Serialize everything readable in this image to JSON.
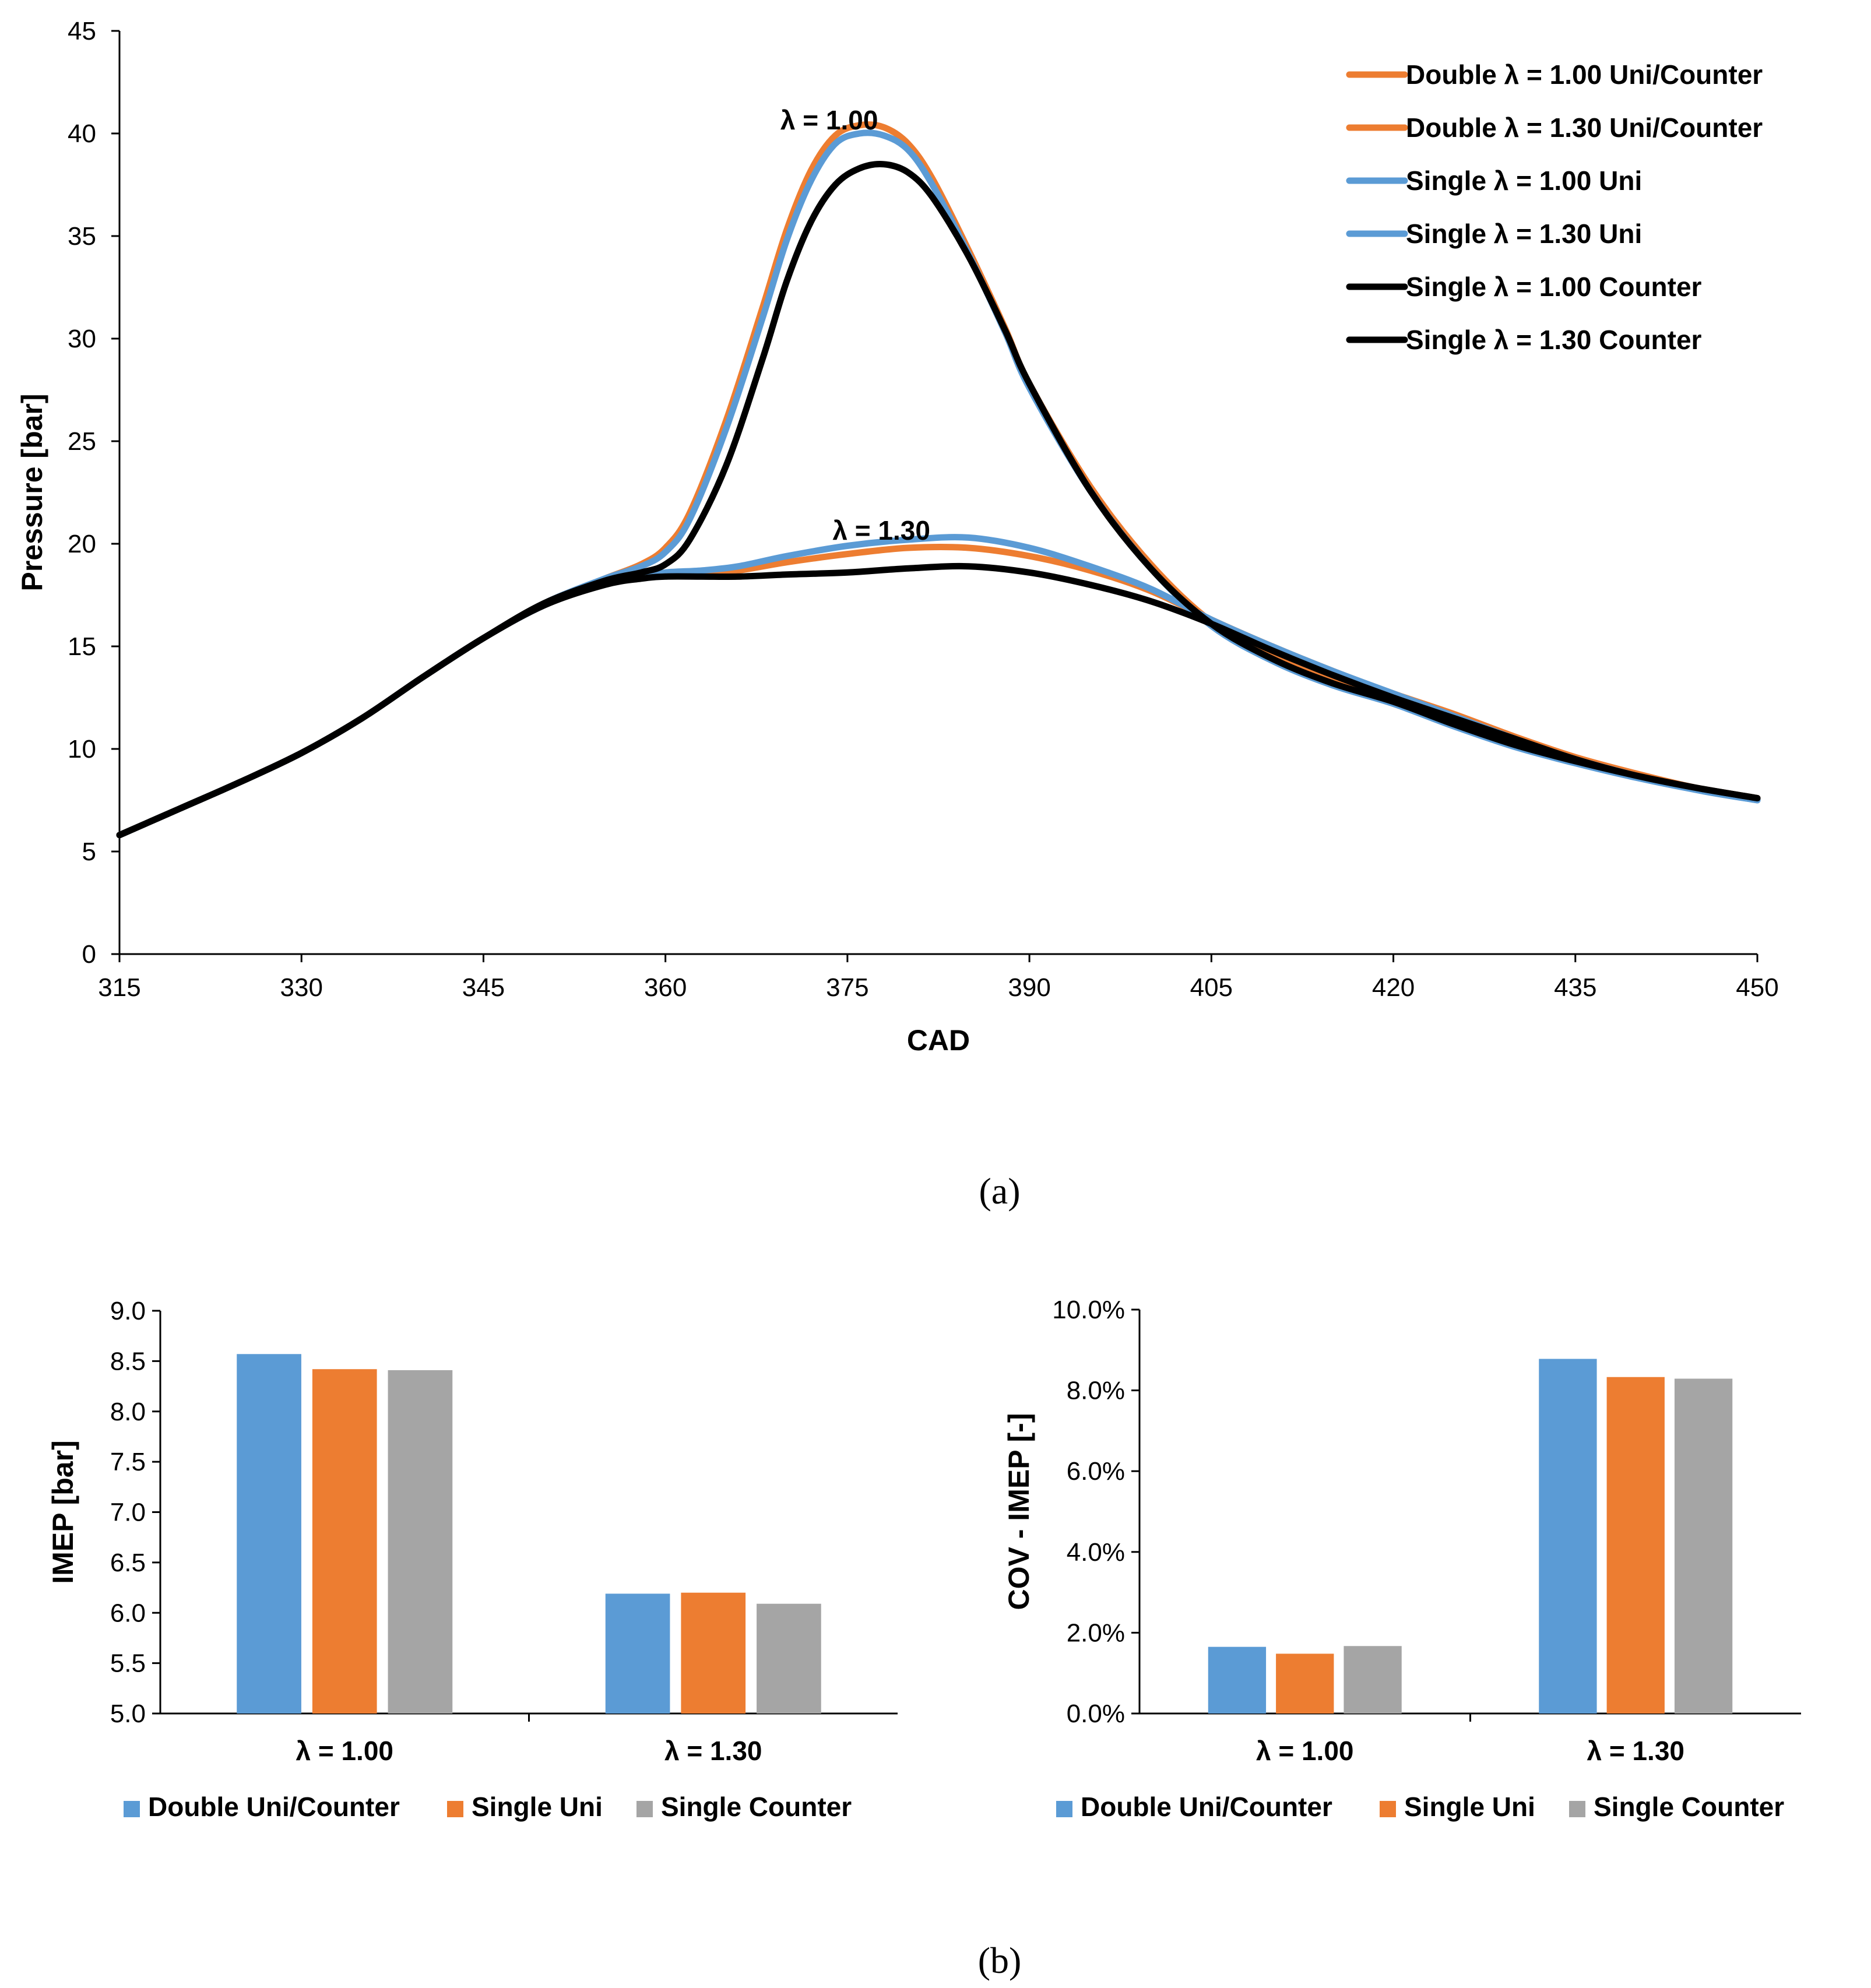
{
  "chart_data": [
    {
      "type": "line",
      "panel": "a",
      "xlabel": "CAD",
      "ylabel": "Pressure [bar]",
      "xlim": [
        315,
        450
      ],
      "ylim": [
        0,
        45
      ],
      "xticks": [
        315,
        330,
        345,
        360,
        375,
        390,
        405,
        420,
        435,
        450
      ],
      "yticks": [
        0,
        5,
        10,
        15,
        20,
        25,
        30,
        35,
        40,
        45
      ],
      "grid": false,
      "legend_position": "top-right",
      "annotations": [
        {
          "text": "λ = 1.00",
          "x": 373.5,
          "y": 40.2
        },
        {
          "text": "λ = 1.30",
          "x": 377.8,
          "y": 20.2
        }
      ],
      "series": [
        {
          "name": "Double λ = 1.00 Uni/Counter",
          "color": "#ED7D31",
          "x": [
            315,
            320,
            325,
            330,
            335,
            340,
            345,
            350,
            355,
            358,
            360,
            362,
            365,
            368,
            370,
            372,
            374,
            376,
            378,
            380,
            382,
            385,
            388,
            390,
            395,
            400,
            405,
            410,
            415,
            420,
            425,
            430,
            435,
            440,
            445,
            450
          ],
          "y": [
            5.8,
            7.1,
            8.4,
            9.8,
            11.5,
            13.5,
            15.4,
            17.1,
            18.3,
            19.0,
            19.8,
            21.5,
            26.0,
            31.5,
            35.3,
            38.2,
            39.9,
            40.4,
            40.3,
            39.5,
            37.8,
            34.3,
            30.5,
            27.8,
            22.8,
            19.0,
            16.2,
            14.5,
            13.3,
            12.4,
            11.3,
            10.3,
            9.5,
            8.7,
            8.1,
            7.6
          ]
        },
        {
          "name": "Double λ = 1.30 Uni/Counter",
          "color": "#ED7D31",
          "x": [
            315,
            320,
            325,
            330,
            335,
            340,
            345,
            350,
            355,
            358,
            360,
            363,
            366,
            370,
            375,
            380,
            385,
            390,
            395,
            400,
            405,
            410,
            415,
            420,
            425,
            430,
            435,
            440,
            445,
            450
          ],
          "y": [
            5.8,
            7.1,
            8.4,
            9.8,
            11.5,
            13.5,
            15.4,
            17.0,
            18.1,
            18.4,
            18.5,
            18.6,
            18.7,
            19.1,
            19.5,
            19.8,
            19.8,
            19.4,
            18.7,
            17.7,
            16.3,
            15.0,
            13.8,
            12.7,
            11.7,
            10.6,
            9.6,
            8.8,
            8.1,
            7.6
          ]
        },
        {
          "name": "Single λ = 1.00 Uni",
          "color": "#5B9BD5",
          "x": [
            315,
            320,
            325,
            330,
            335,
            340,
            345,
            350,
            355,
            358,
            360,
            362,
            365,
            368,
            370,
            372,
            374,
            376,
            378,
            380,
            382,
            385,
            388,
            390,
            395,
            400,
            405,
            410,
            415,
            420,
            425,
            430,
            435,
            440,
            445,
            450
          ],
          "y": [
            5.8,
            7.1,
            8.4,
            9.8,
            11.5,
            13.5,
            15.4,
            17.1,
            18.3,
            18.9,
            19.6,
            21.2,
            25.6,
            31.0,
            34.8,
            37.7,
            39.5,
            40.0,
            39.9,
            39.2,
            37.5,
            34.1,
            30.3,
            27.6,
            22.6,
            18.8,
            16.0,
            14.3,
            13.1,
            12.2,
            11.1,
            10.1,
            9.3,
            8.6,
            8.0,
            7.5
          ]
        },
        {
          "name": "Single λ = 1.30 Uni",
          "color": "#5B9BD5",
          "x": [
            315,
            320,
            325,
            330,
            335,
            340,
            345,
            350,
            355,
            358,
            360,
            363,
            366,
            370,
            375,
            380,
            385,
            390,
            395,
            400,
            405,
            410,
            415,
            420,
            425,
            430,
            435,
            440,
            445,
            450
          ],
          "y": [
            5.8,
            7.1,
            8.4,
            9.8,
            11.5,
            13.5,
            15.4,
            17.0,
            18.1,
            18.4,
            18.6,
            18.7,
            18.9,
            19.4,
            19.9,
            20.2,
            20.3,
            19.8,
            18.9,
            17.8,
            16.3,
            15.0,
            13.8,
            12.7,
            11.6,
            10.5,
            9.5,
            8.7,
            8.0,
            7.5
          ]
        },
        {
          "name": "Single λ = 1.00 Counter",
          "color": "#000000",
          "x": [
            315,
            320,
            325,
            330,
            335,
            340,
            345,
            350,
            355,
            358,
            360,
            362,
            365,
            368,
            370,
            372,
            374,
            376,
            378,
            380,
            382,
            385,
            388,
            390,
            395,
            400,
            405,
            410,
            415,
            420,
            425,
            430,
            435,
            440,
            445,
            450
          ],
          "y": [
            5.8,
            7.1,
            8.4,
            9.8,
            11.5,
            13.5,
            15.4,
            17.1,
            18.2,
            18.6,
            19.0,
            20.2,
            23.8,
            29.0,
            32.8,
            35.7,
            37.5,
            38.3,
            38.5,
            38.1,
            36.9,
            34.0,
            30.4,
            27.8,
            22.6,
            18.8,
            16.1,
            14.4,
            13.2,
            12.3,
            11.2,
            10.2,
            9.4,
            8.7,
            8.1,
            7.6
          ]
        },
        {
          "name": "Single λ = 1.30 Counter",
          "color": "#000000",
          "x": [
            315,
            320,
            325,
            330,
            335,
            340,
            345,
            350,
            355,
            358,
            360,
            363,
            366,
            370,
            375,
            380,
            385,
            390,
            395,
            400,
            405,
            410,
            415,
            420,
            425,
            430,
            435,
            440,
            445,
            450
          ],
          "y": [
            5.8,
            7.1,
            8.4,
            9.8,
            11.5,
            13.5,
            15.4,
            17.0,
            18.0,
            18.3,
            18.4,
            18.4,
            18.4,
            18.5,
            18.6,
            18.8,
            18.9,
            18.6,
            18.0,
            17.2,
            16.1,
            14.8,
            13.6,
            12.5,
            11.5,
            10.5,
            9.5,
            8.7,
            8.1,
            7.6
          ]
        }
      ]
    },
    {
      "type": "bar",
      "panel": "b-left",
      "ylabel": "IMEP [bar]",
      "xlabel": "",
      "ylim": [
        5.0,
        9.0
      ],
      "yticks": [
        "5.0",
        "5.5",
        "6.0",
        "6.5",
        "7.0",
        "7.5",
        "8.0",
        "8.5",
        "9.0"
      ],
      "categories": [
        "λ = 1.00",
        "λ = 1.30"
      ],
      "legend_position": "bottom",
      "series": [
        {
          "name": "Double Uni/Counter",
          "color": "#5B9BD5",
          "values": [
            8.57,
            6.19
          ]
        },
        {
          "name": "Single Uni",
          "color": "#ED7D31",
          "values": [
            8.42,
            6.2
          ]
        },
        {
          "name": "Single Counter",
          "color": "#A5A5A5",
          "values": [
            8.41,
            6.09
          ]
        }
      ]
    },
    {
      "type": "bar",
      "panel": "b-right",
      "ylabel": "COV - IMEP [-]",
      "xlabel": "",
      "ylim": [
        0.0,
        10.0
      ],
      "yticks": [
        "0.0%",
        "2.0%",
        "4.0%",
        "6.0%",
        "8.0%",
        "10.0%"
      ],
      "categories": [
        "λ = 1.00",
        "λ = 1.30"
      ],
      "legend_position": "bottom",
      "series": [
        {
          "name": "Double Uni/Counter",
          "color": "#5B9BD5",
          "values": [
            1.65,
            8.78
          ]
        },
        {
          "name": "Single Uni",
          "color": "#ED7D31",
          "values": [
            1.48,
            8.33
          ]
        },
        {
          "name": "Single Counter",
          "color": "#A5A5A5",
          "values": [
            1.67,
            8.29
          ]
        }
      ]
    }
  ],
  "captions": {
    "a": "(a)",
    "b": "(b)"
  }
}
